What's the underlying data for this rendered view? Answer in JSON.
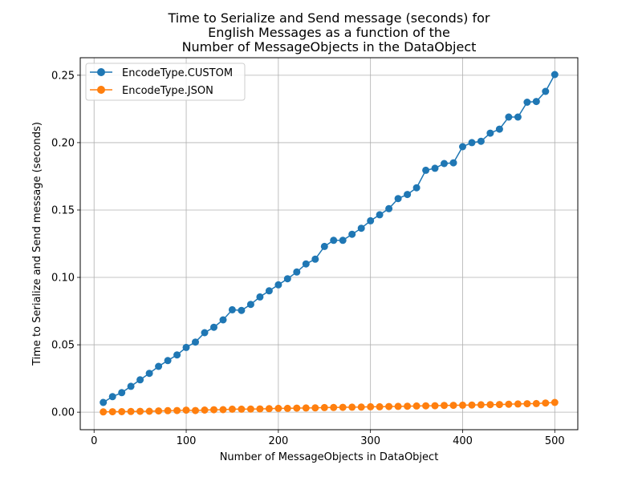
{
  "chart_data": {
    "type": "line",
    "title_lines": [
      "Time to Serialize and Send message (seconds) for",
      "English Messages as a function of the",
      "Number of MessageObjects in the DataObject"
    ],
    "xlabel": "Number of MessageObjects in DataObject",
    "ylabel": "Time to Serialize and Send message (seconds)",
    "xlim": [
      -15,
      525
    ],
    "ylim": [
      -0.013,
      0.263
    ],
    "xticks": [
      0,
      100,
      200,
      300,
      400,
      500
    ],
    "xtick_labels": [
      "0",
      "100",
      "200",
      "300",
      "400",
      "500"
    ],
    "yticks": [
      0.0,
      0.05,
      0.1,
      0.15,
      0.2,
      0.25
    ],
    "ytick_labels": [
      "0.00",
      "0.05",
      "0.10",
      "0.15",
      "0.20",
      "0.25"
    ],
    "grid": true,
    "legend_position": "top-left",
    "x": [
      10,
      20,
      30,
      40,
      50,
      60,
      70,
      80,
      90,
      100,
      110,
      120,
      130,
      140,
      150,
      160,
      170,
      180,
      190,
      200,
      210,
      220,
      230,
      240,
      250,
      260,
      270,
      280,
      290,
      300,
      310,
      320,
      330,
      340,
      350,
      360,
      370,
      380,
      390,
      400,
      410,
      420,
      430,
      440,
      450,
      460,
      470,
      480,
      490,
      500
    ],
    "series": [
      {
        "name": "EncodeType.CUSTOM",
        "color": "#1f77b4",
        "values": [
          0.0072,
          0.0115,
          0.0145,
          0.0192,
          0.024,
          0.0288,
          0.034,
          0.0383,
          0.0425,
          0.048,
          0.052,
          0.059,
          0.063,
          0.0685,
          0.076,
          0.0755,
          0.08,
          0.0855,
          0.09,
          0.0945,
          0.099,
          0.104,
          0.11,
          0.1135,
          0.123,
          0.1275,
          0.1275,
          0.132,
          0.1365,
          0.142,
          0.1465,
          0.151,
          0.1585,
          0.1615,
          0.1665,
          0.1795,
          0.181,
          0.1845,
          0.185,
          0.197,
          0.2,
          0.201,
          0.207,
          0.21,
          0.219,
          0.219,
          0.23,
          0.2305,
          0.238,
          0.2505
        ]
      },
      {
        "name": "EncodeType.JSON",
        "color": "#ff7f0e",
        "values": [
          0.0002,
          0.0003,
          0.0004,
          0.0005,
          0.0006,
          0.0007,
          0.0009,
          0.0011,
          0.0012,
          0.0015,
          0.0012,
          0.0016,
          0.0018,
          0.0019,
          0.0022,
          0.0022,
          0.0023,
          0.0024,
          0.0026,
          0.0028,
          0.0028,
          0.003,
          0.0031,
          0.0032,
          0.0034,
          0.0035,
          0.0036,
          0.0037,
          0.0038,
          0.004,
          0.004,
          0.0042,
          0.0043,
          0.0044,
          0.0046,
          0.0047,
          0.0048,
          0.005,
          0.0051,
          0.0052,
          0.0053,
          0.0055,
          0.0056,
          0.0057,
          0.0059,
          0.0061,
          0.0063,
          0.0064,
          0.0068,
          0.0072
        ]
      }
    ]
  }
}
